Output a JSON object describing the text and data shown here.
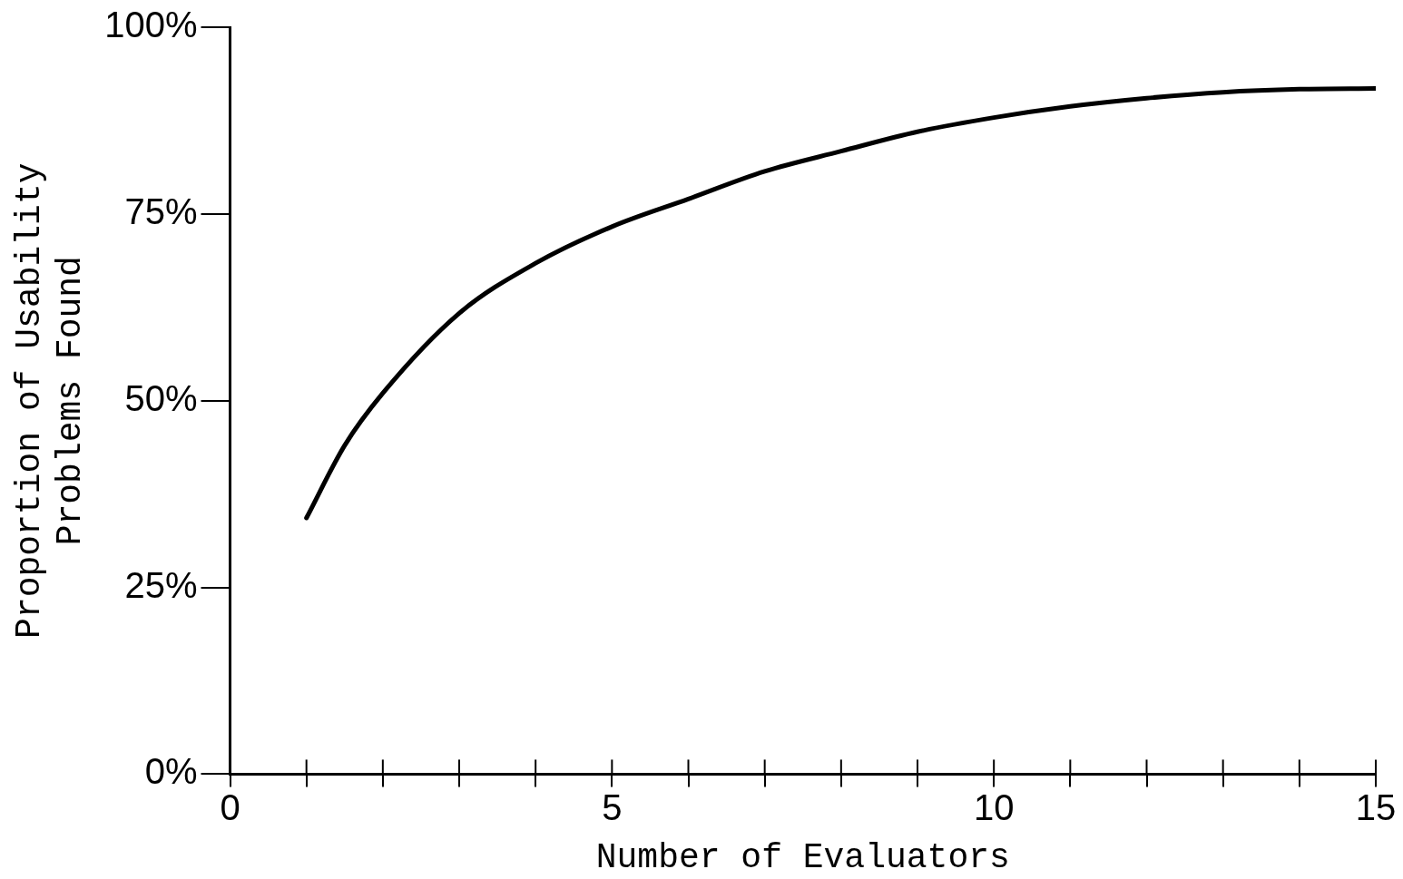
{
  "chart_data": {
    "type": "line",
    "xlabel": "Number of Evaluators",
    "ylabel": "Proportion of Usability\nProblems Found",
    "x": [
      1,
      1.5,
      2,
      3,
      4,
      5,
      6,
      7,
      8,
      9,
      10,
      11,
      12,
      13,
      14,
      15
    ],
    "series": [
      {
        "color": "#000000",
        "values": [
          34.3,
          44,
          51,
          61.7,
          68.4,
          73.3,
          77,
          80.7,
          83.4,
          86,
          87.9,
          89.4,
          90.5,
          91.3,
          91.7,
          91.8
        ]
      }
    ],
    "xlim": [
      0,
      15
    ],
    "xticks": [
      0,
      {
        "value": 1,
        "label": null
      },
      {
        "value": 2,
        "label": null
      },
      {
        "value": 3,
        "label": null
      },
      {
        "value": 4,
        "label": null
      },
      5,
      {
        "value": 6,
        "label": null
      },
      {
        "value": 7,
        "label": null
      },
      {
        "value": 8,
        "label": null
      },
      {
        "value": 9,
        "label": null
      },
      10,
      {
        "value": 11,
        "label": null
      },
      {
        "value": 12,
        "label": null
      },
      {
        "value": 13,
        "label": null
      },
      {
        "value": 14,
        "label": null
      },
      15
    ],
    "ylim": [
      0,
      100
    ],
    "yticks": [
      {
        "value": 0,
        "label": "0%"
      },
      {
        "value": 25,
        "label": "25%"
      },
      {
        "value": 50,
        "label": "50%"
      },
      {
        "value": 75,
        "label": "75%"
      },
      {
        "value": 100,
        "label": "100%"
      }
    ],
    "grid": false,
    "legend": false,
    "marker": "none",
    "line_style": "solid"
  }
}
